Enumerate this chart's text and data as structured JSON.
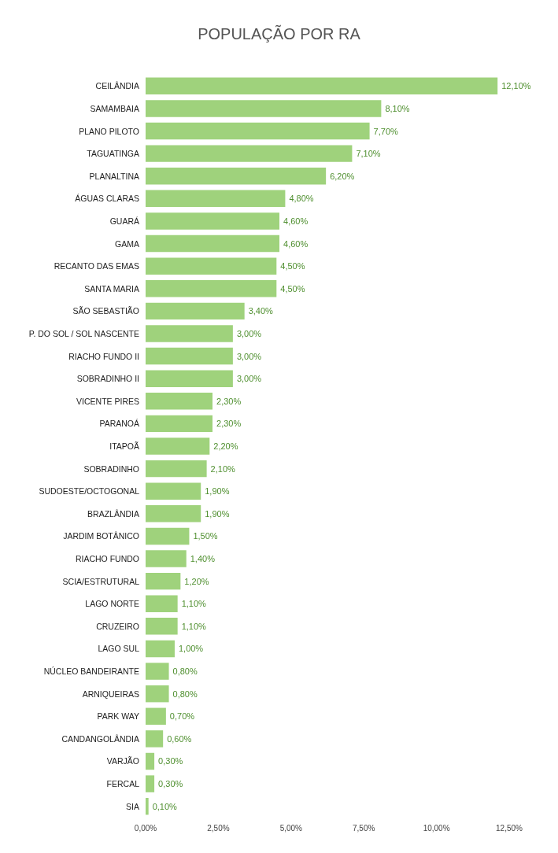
{
  "chart_data": {
    "type": "bar",
    "orientation": "horizontal",
    "title": "POPULAÇÃO POR RA",
    "categories": [
      "CEILÂNDIA",
      "SAMAMBAIA",
      "PLANO PILOTO",
      "TAGUATINGA",
      "PLANALTINA",
      "ÁGUAS CLARAS",
      "GUARÁ",
      "GAMA",
      "RECANTO DAS EMAS",
      "SANTA MARIA",
      "SÃO SEBASTIÃO",
      "P. DO SOL / SOL NASCENTE",
      "RIACHO FUNDO II",
      "SOBRADINHO II",
      "VICENTE PIRES",
      "PARANOÁ",
      "ITAPOÃ",
      "SOBRADINHO",
      "SUDOESTE/OCTOGONAL",
      "BRAZLÂNDIA",
      "JARDIM BOTÂNICO",
      "RIACHO FUNDO",
      "SCIA/ESTRUTURAL",
      "LAGO NORTE",
      "CRUZEIRO",
      "LAGO SUL",
      "NÚCLEO BANDEIRANTE",
      "ARNIQUEIRAS",
      "PARK WAY",
      "CANDANGOLÂNDIA",
      "VARJÃO",
      "FERCAL",
      "SIA"
    ],
    "values": [
      12.1,
      8.1,
      7.7,
      7.1,
      6.2,
      4.8,
      4.6,
      4.6,
      4.5,
      4.5,
      3.4,
      3.0,
      3.0,
      3.0,
      2.3,
      2.3,
      2.2,
      2.1,
      1.9,
      1.9,
      1.5,
      1.4,
      1.2,
      1.1,
      1.1,
      1.0,
      0.8,
      0.8,
      0.7,
      0.6,
      0.3,
      0.3,
      0.1
    ],
    "value_labels": [
      "12,10%",
      "8,10%",
      "7,70%",
      "7,10%",
      "6,20%",
      "4,80%",
      "4,60%",
      "4,60%",
      "4,50%",
      "4,50%",
      "3,40%",
      "3,00%",
      "3,00%",
      "3,00%",
      "2,30%",
      "2,30%",
      "2,20%",
      "2,10%",
      "1,90%",
      "1,90%",
      "1,50%",
      "1,40%",
      "1,20%",
      "1,10%",
      "1,10%",
      "1,00%",
      "0,80%",
      "0,80%",
      "0,70%",
      "0,60%",
      "0,30%",
      "0,30%",
      "0,10%"
    ],
    "color": "#9fd27c",
    "xlim": [
      0,
      12.5
    ],
    "xticks": [
      {
        "value": 0,
        "label": "0,00%"
      },
      {
        "value": 2.5,
        "label": "2,50%"
      },
      {
        "value": 5,
        "label": "5,00%"
      },
      {
        "value": 7.5,
        "label": "7,50%"
      },
      {
        "value": 10,
        "label": "10,00%"
      },
      {
        "value": 12.5,
        "label": "12,50%"
      }
    ],
    "grid": false
  }
}
